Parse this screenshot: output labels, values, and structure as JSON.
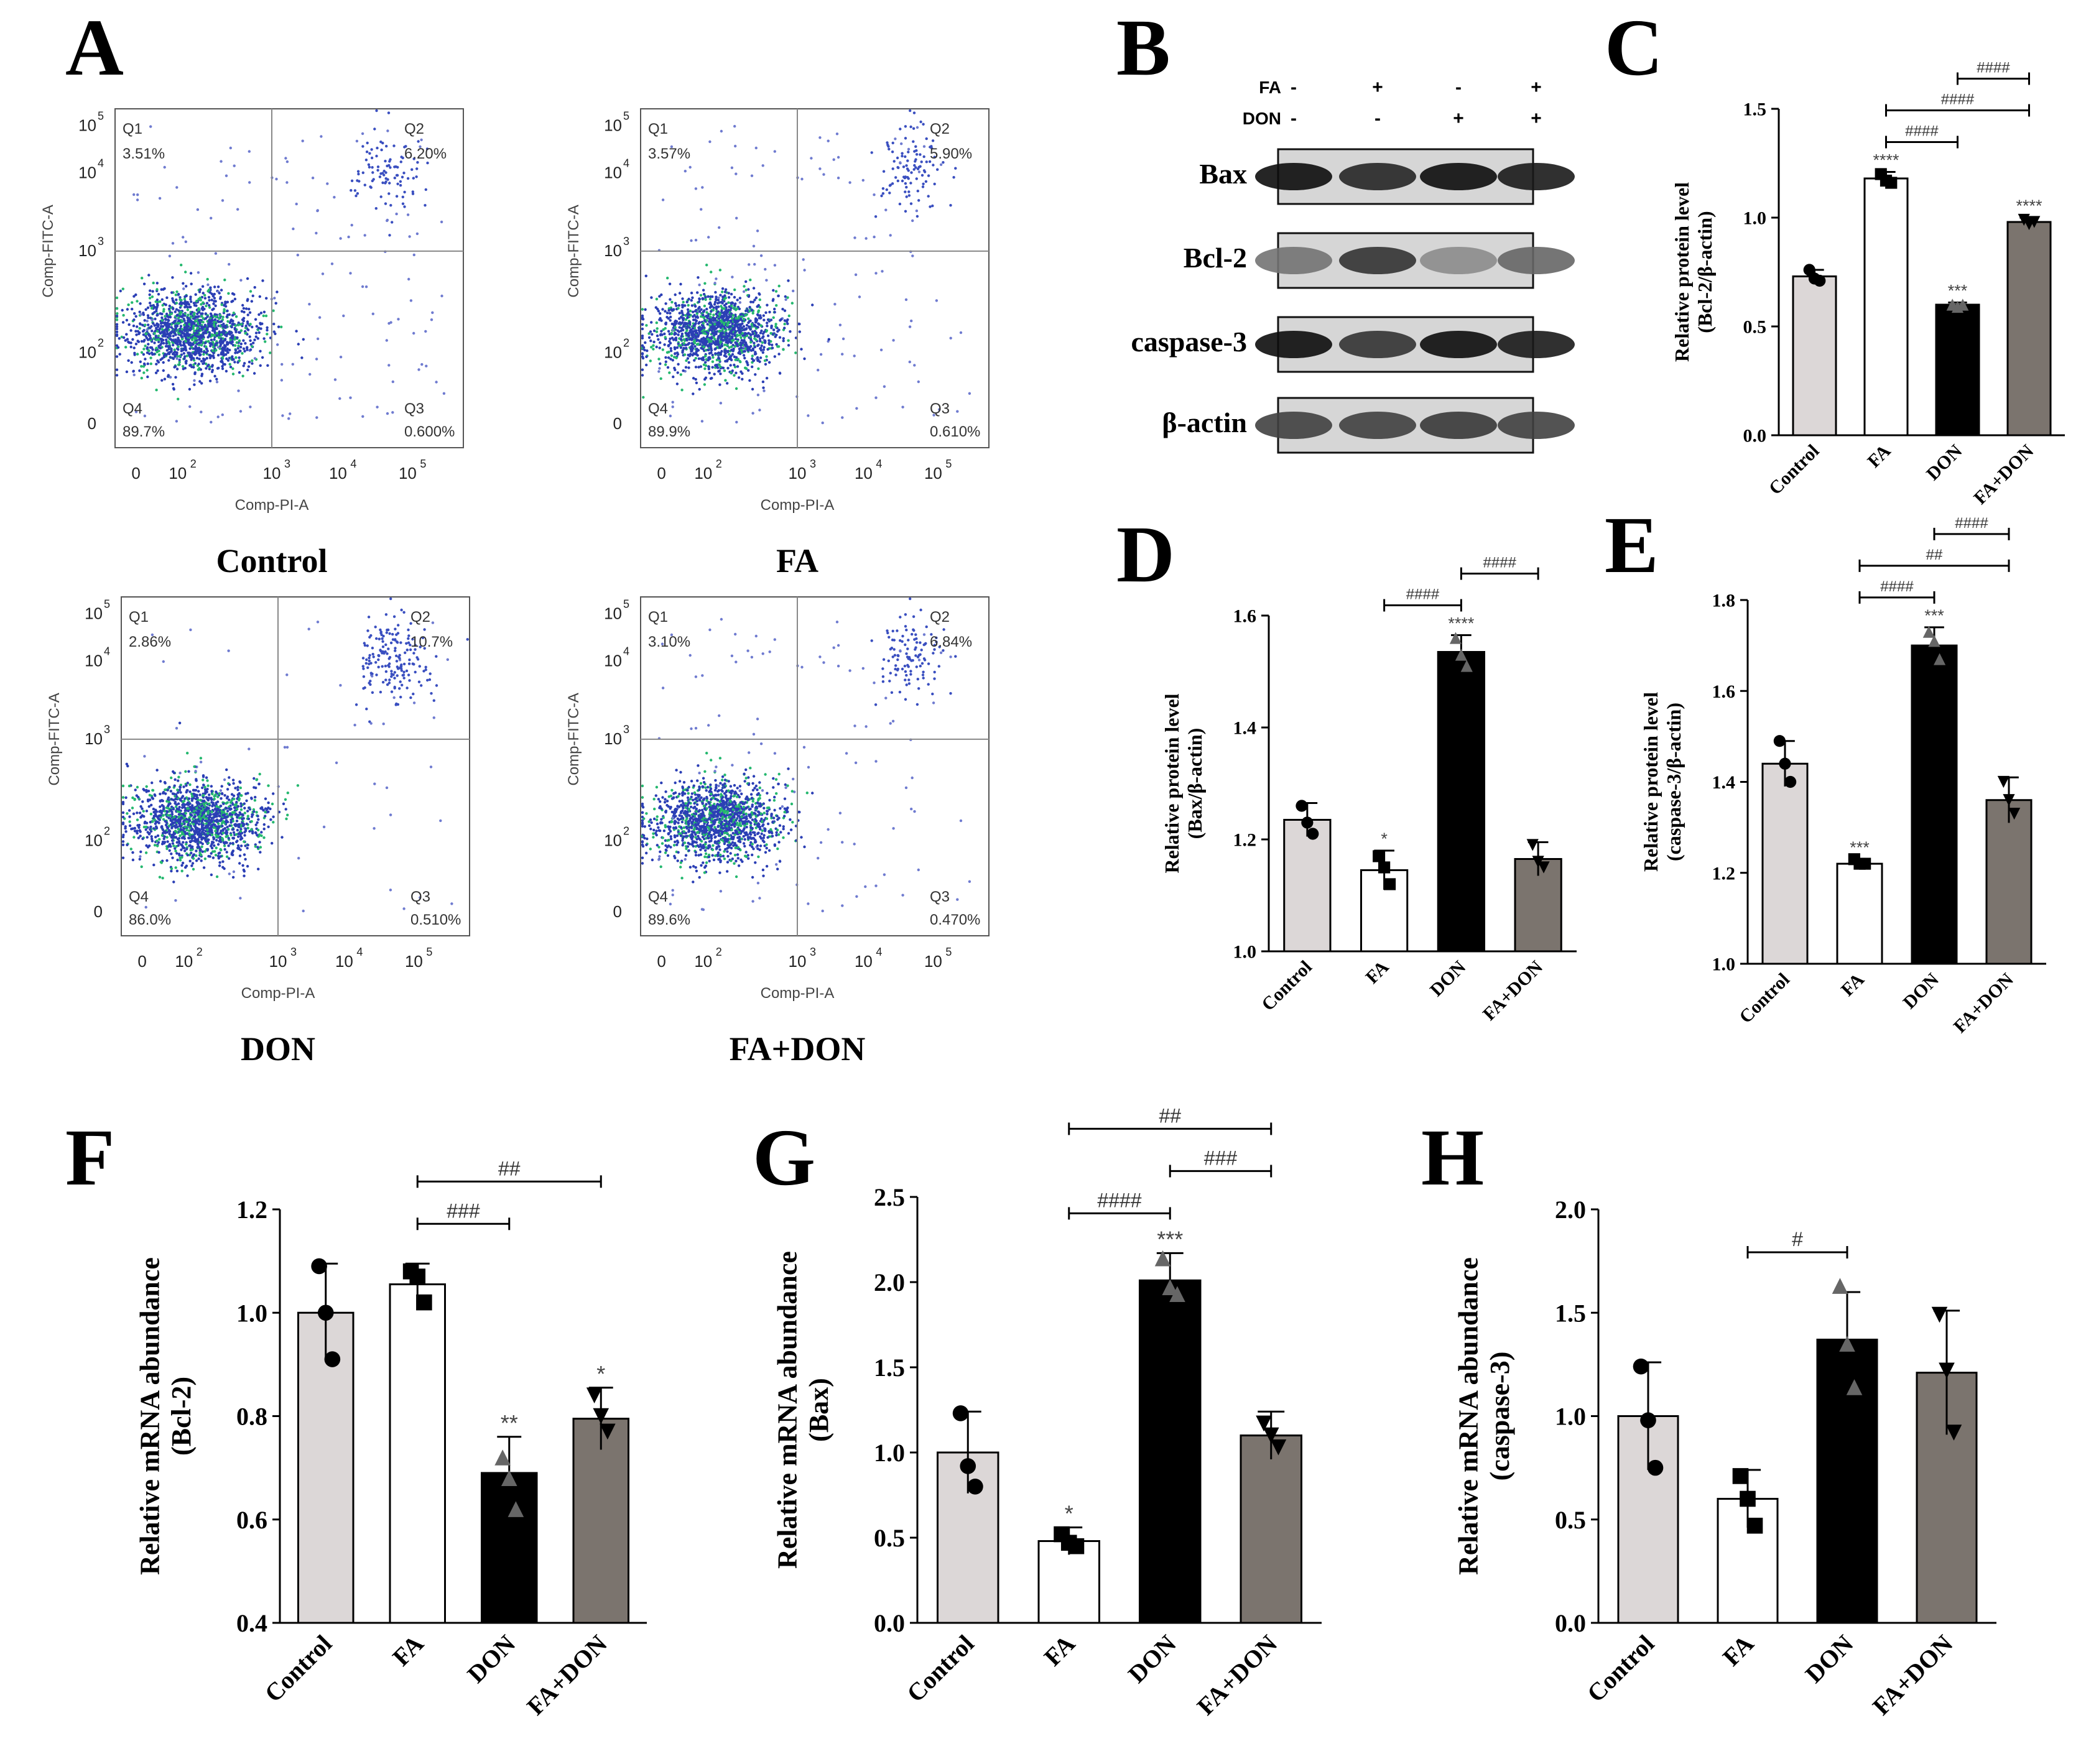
{
  "panel_letters": [
    "A",
    "B",
    "C",
    "D",
    "E",
    "F",
    "G",
    "H"
  ],
  "flow": {
    "xlabel": "Comp-PI-A",
    "ylabel": "Comp-FITC-A",
    "quadrant_names": [
      "Q1",
      "Q2",
      "Q3",
      "Q4"
    ],
    "tick_labels": [
      "0",
      "10",
      "10",
      "10",
      "10"
    ],
    "tick_exponents": [
      "",
      "2",
      "3",
      "4",
      "5"
    ],
    "panels": [
      {
        "name": "Control",
        "Q1": "3.51%",
        "Q2": "6.20%",
        "Q3": "0.600%",
        "Q4": "89.7%"
      },
      {
        "name": "FA",
        "Q1": "3.57%",
        "Q2": "5.90%",
        "Q3": "0.610%",
        "Q4": "89.9%"
      },
      {
        "name": "DON",
        "Q1": "2.86%",
        "Q2": "10.7%",
        "Q3": "0.510%",
        "Q4": "86.0%"
      },
      {
        "name": "FA+DON",
        "Q1": "3.10%",
        "Q2": "6.84%",
        "Q3": "0.470%",
        "Q4": "89.6%"
      }
    ]
  },
  "western": {
    "conditions": [
      {
        "label": "FA",
        "signs": [
          "-",
          "+",
          "-",
          "+"
        ]
      },
      {
        "label": "DON",
        "signs": [
          "-",
          "-",
          "+",
          "+"
        ]
      }
    ],
    "bands": [
      "Bax",
      "Bcl-2",
      "caspase-3",
      "β-actin"
    ]
  },
  "colors": {
    "Control": "#dcd7d7",
    "FA": "#ffffff",
    "DON": "#000000",
    "FA+DON": "#7b746e"
  },
  "chart_data": [
    {
      "id": "C",
      "type": "bar",
      "categories": [
        "Control",
        "FA",
        "DON",
        "FA+DON"
      ],
      "values": [
        0.73,
        1.18,
        0.6,
        0.98
      ],
      "errors": [
        0.03,
        0.03,
        0.01,
        0.02
      ],
      "points": [
        [
          0.76,
          0.72,
          0.71
        ],
        [
          1.2,
          1.17,
          1.16
        ],
        [
          0.6,
          0.59,
          0.6
        ],
        [
          0.99,
          0.97,
          0.98
        ]
      ],
      "ylabel_lines": [
        "Relative protein level",
        "(Bcl-2/β-actin)"
      ],
      "ylim": [
        0,
        1.5
      ],
      "yticks": [
        "0.0",
        "0.5",
        "1.0",
        "1.5"
      ],
      "stars": [
        "",
        "****",
        "***",
        "****"
      ],
      "comparisons": [
        {
          "from": 1,
          "to": 2,
          "label": "####"
        },
        {
          "from": 1,
          "to": 3,
          "label": "####"
        },
        {
          "from": 2,
          "to": 3,
          "label": "####"
        }
      ]
    },
    {
      "id": "D",
      "type": "bar",
      "categories": [
        "Control",
        "FA",
        "DON",
        "FA+DON"
      ],
      "values": [
        1.235,
        1.145,
        1.535,
        1.165
      ],
      "errors": [
        0.03,
        0.035,
        0.03,
        0.03
      ],
      "points": [
        [
          1.26,
          1.23,
          1.21
        ],
        [
          1.17,
          1.15,
          1.12
        ],
        [
          1.56,
          1.53,
          1.51
        ],
        [
          1.19,
          1.16,
          1.15
        ]
      ],
      "ylabel_lines": [
        "Relative protein level",
        "(Bax/β-actin)"
      ],
      "ylim": [
        1.0,
        1.6
      ],
      "yticks": [
        "1.0",
        "1.2",
        "1.4",
        "1.6"
      ],
      "stars": [
        "",
        "*",
        "****",
        ""
      ],
      "comparisons": [
        {
          "from": 1,
          "to": 2,
          "label": "####"
        },
        {
          "from": 2,
          "to": 3,
          "label": "####"
        }
      ]
    },
    {
      "id": "E",
      "type": "bar",
      "categories": [
        "Control",
        "FA",
        "DON",
        "FA+DON"
      ],
      "values": [
        1.44,
        1.22,
        1.7,
        1.36
      ],
      "errors": [
        0.05,
        0.01,
        0.04,
        0.05
      ],
      "points": [
        [
          1.49,
          1.44,
          1.4
        ],
        [
          1.23,
          1.22,
          1.22
        ],
        [
          1.73,
          1.71,
          1.67
        ],
        [
          1.4,
          1.36,
          1.33
        ]
      ],
      "ylabel_lines": [
        "Relative protein level",
        "(caspase-3/β-actin)"
      ],
      "ylim": [
        1.0,
        1.8
      ],
      "yticks": [
        "1.0",
        "1.2",
        "1.4",
        "1.6",
        "1.8"
      ],
      "stars": [
        "",
        "***",
        "***",
        ""
      ],
      "comparisons": [
        {
          "from": 1,
          "to": 2,
          "label": "####"
        },
        {
          "from": 1,
          "to": 3,
          "label": "##"
        },
        {
          "from": 2,
          "to": 3,
          "label": "####"
        }
      ]
    },
    {
      "id": "F",
      "type": "bar",
      "categories": [
        "Control",
        "FA",
        "DON",
        "FA+DON"
      ],
      "values": [
        1.0,
        1.055,
        0.69,
        0.795
      ],
      "errors": [
        0.095,
        0.04,
        0.07,
        0.06
      ],
      "points": [
        [
          1.09,
          1.0,
          0.91
        ],
        [
          1.08,
          1.07,
          1.02
        ],
        [
          0.72,
          0.68,
          0.62
        ],
        [
          0.84,
          0.8,
          0.77
        ]
      ],
      "ylabel_lines": [
        "Relative mRNA abundance",
        "(Bcl-2)"
      ],
      "ylim": [
        0.4,
        1.2
      ],
      "yticks": [
        "0.4",
        "0.6",
        "0.8",
        "1.0",
        "1.2"
      ],
      "stars": [
        "",
        "",
        "**",
        "*"
      ],
      "comparisons": [
        {
          "from": 1,
          "to": 2,
          "label": "###"
        },
        {
          "from": 1,
          "to": 3,
          "label": "##"
        }
      ]
    },
    {
      "id": "G",
      "type": "bar",
      "categories": [
        "Control",
        "FA",
        "DON",
        "FA+DON"
      ],
      "values": [
        1.0,
        0.48,
        2.01,
        1.1
      ],
      "errors": [
        0.24,
        0.08,
        0.16,
        0.14
      ],
      "points": [
        [
          1.23,
          0.92,
          0.8
        ],
        [
          0.52,
          0.47,
          0.45
        ],
        [
          2.14,
          1.97,
          1.93
        ],
        [
          1.17,
          1.1,
          1.03
        ]
      ],
      "ylabel_lines": [
        "Relative mRNA abundance",
        "(Bax)"
      ],
      "ylim": [
        0,
        2.5
      ],
      "yticks": [
        "0.0",
        "0.5",
        "1.0",
        "1.5",
        "2.0",
        "2.5"
      ],
      "stars": [
        "",
        "*",
        "***",
        ""
      ],
      "comparisons": [
        {
          "from": 1,
          "to": 2,
          "label": "####"
        },
        {
          "from": 2,
          "to": 3,
          "label": "###"
        },
        {
          "from": 1,
          "to": 3,
          "label": "##"
        }
      ]
    },
    {
      "id": "H",
      "type": "bar",
      "categories": [
        "Control",
        "FA",
        "DON",
        "FA+DON"
      ],
      "values": [
        1.0,
        0.6,
        1.37,
        1.21
      ],
      "errors": [
        0.26,
        0.14,
        0.23,
        0.3
      ],
      "points": [
        [
          1.24,
          0.98,
          0.75
        ],
        [
          0.71,
          0.6,
          0.47
        ],
        [
          1.63,
          1.35,
          1.14
        ],
        [
          1.49,
          1.22,
          0.92
        ]
      ],
      "ylabel_lines": [
        "Relative mRNA abundance",
        "(caspase-3)"
      ],
      "ylim": [
        0,
        2.0
      ],
      "yticks": [
        "0.0",
        "0.5",
        "1.0",
        "1.5",
        "2.0"
      ],
      "stars": [
        "",
        "",
        "",
        ""
      ],
      "comparisons": [
        {
          "from": 1,
          "to": 2,
          "label": "#"
        }
      ]
    }
  ]
}
